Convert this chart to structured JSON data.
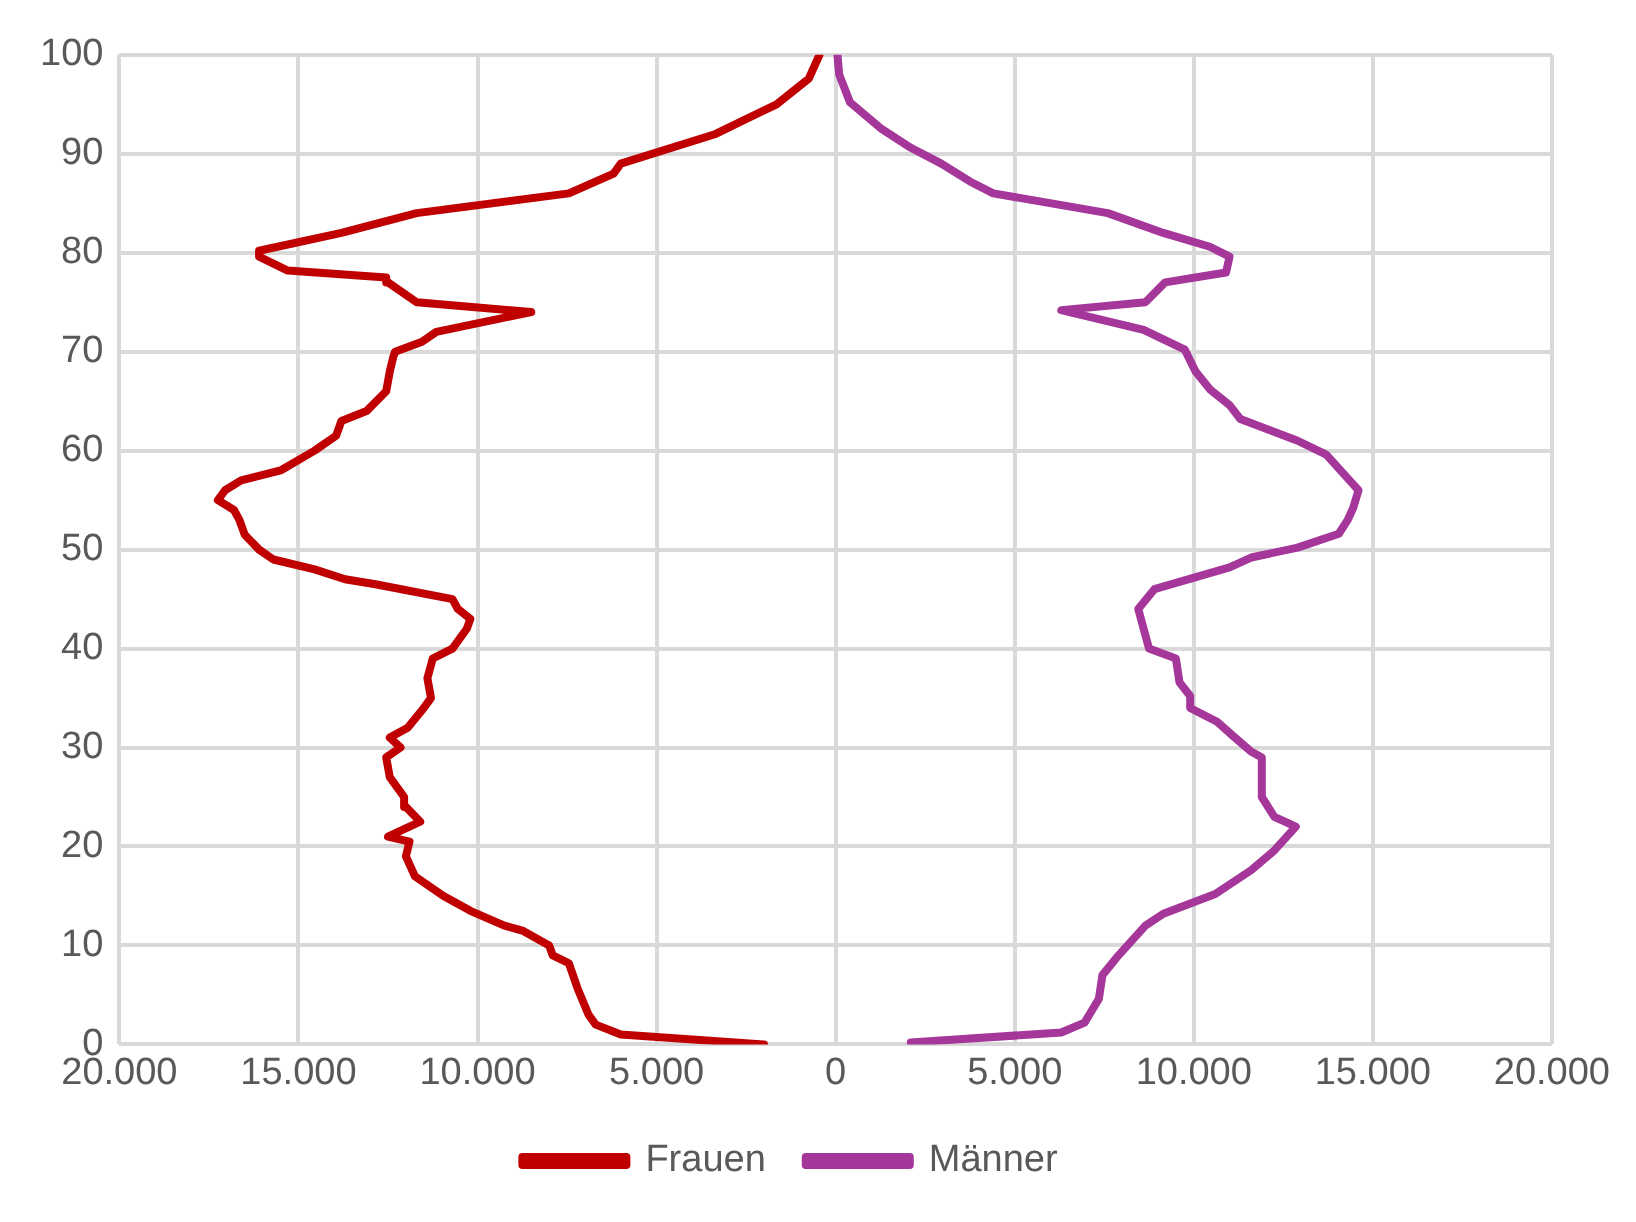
{
  "chart_data": {
    "type": "line",
    "series": [
      {
        "name": "Frauen",
        "color": "#c00000",
        "x": [
          -2000,
          -6000,
          -6700,
          -6900,
          -7200,
          -7450,
          -7900,
          -8000,
          -8750,
          -9250,
          -10200,
          -10950,
          -11750,
          -12000,
          -11900,
          -12500,
          -11600,
          -12000,
          -12050,
          -12450,
          -12550,
          -12150,
          -12450,
          -11950,
          -11500,
          -11300,
          -11400,
          -11250,
          -10700,
          -10300,
          -10200,
          -10550,
          -10700,
          -12850,
          -13700,
          -14550,
          -15700,
          -16100,
          -16500,
          -16650,
          -16800,
          -17250,
          -17050,
          -16600,
          -15500,
          -14550,
          -13950,
          -13800,
          -13100,
          -12550,
          -12450,
          -12350,
          -12300,
          -11550,
          -11150,
          -8500,
          -11700,
          -12500,
          -12550,
          -15300,
          -16100,
          -16100,
          -13800,
          -11700,
          -7450,
          -6200,
          -6000,
          -3350,
          -1650,
          -750,
          -450
        ],
        "values": [
          0,
          1,
          2,
          3,
          5.6,
          8.2,
          9,
          10,
          11.5,
          12,
          13.5,
          15,
          17,
          19,
          20.5,
          21,
          22.5,
          24,
          25,
          27,
          29,
          30,
          31,
          32,
          34,
          35,
          37,
          39,
          40,
          42,
          43,
          44,
          45,
          46.5,
          47,
          48,
          49,
          50,
          51.5,
          53,
          54,
          55,
          56,
          57,
          58,
          60,
          61.5,
          63,
          64,
          66,
          68,
          69.5,
          70,
          71,
          72,
          74,
          75,
          77,
          77.5,
          78.2,
          79.6,
          80.2,
          82,
          84,
          86,
          88,
          89,
          92,
          95,
          97.6,
          100
        ]
      },
      {
        "name": "Männer",
        "color": "#a5369a",
        "x": [
          2100,
          6300,
          6950,
          7350,
          7450,
          7900,
          8650,
          9150,
          10600,
          11600,
          12250,
          12850,
          12250,
          11900,
          11900,
          11600,
          11150,
          10650,
          9900,
          9900,
          9600,
          9500,
          8750,
          8450,
          8900,
          11000,
          11600,
          12900,
          14050,
          14300,
          14450,
          14600,
          14300,
          13700,
          12900,
          11300,
          11000,
          10450,
          10050,
          9750,
          8600,
          6300,
          8650,
          9200,
          10900,
          11000,
          10450,
          9150,
          7600,
          4400,
          3750,
          2950,
          2100,
          1250,
          400,
          100,
          50
        ],
        "values": [
          0.2,
          1.2,
          2.2,
          4.6,
          7,
          9,
          12,
          13.2,
          15.2,
          17.6,
          19.6,
          22,
          23,
          25,
          29,
          29.6,
          31,
          32.6,
          34,
          35.2,
          36.6,
          39,
          40,
          44,
          46,
          48.2,
          49.2,
          50.2,
          51.6,
          53,
          54.2,
          56,
          57.2,
          59.6,
          61,
          63.2,
          64.6,
          66.2,
          68,
          70.2,
          72.2,
          74.2,
          75,
          77,
          78,
          79.6,
          80.6,
          82,
          84,
          86,
          87.2,
          89,
          90.6,
          92.6,
          95.2,
          98,
          100
        ]
      }
    ],
    "xlim": [
      -20000,
      20000
    ],
    "xticks": [
      {
        "value": -20000,
        "label": "20.000"
      },
      {
        "value": -15000,
        "label": "15.000"
      },
      {
        "value": -10000,
        "label": "10.000"
      },
      {
        "value": -5000,
        "label": "5.000"
      },
      0,
      {
        "value": 5000,
        "label": "5.000"
      },
      {
        "value": 10000,
        "label": "10.000"
      },
      {
        "value": 15000,
        "label": "15.000"
      },
      {
        "value": 20000,
        "label": "20.000"
      }
    ],
    "ylim": [
      0,
      100
    ],
    "yticks": [
      0,
      10,
      20,
      30,
      40,
      50,
      60,
      70,
      80,
      90,
      100
    ],
    "grid": true,
    "legend": "bottom",
    "marker": "none",
    "line_style": "solid"
  }
}
